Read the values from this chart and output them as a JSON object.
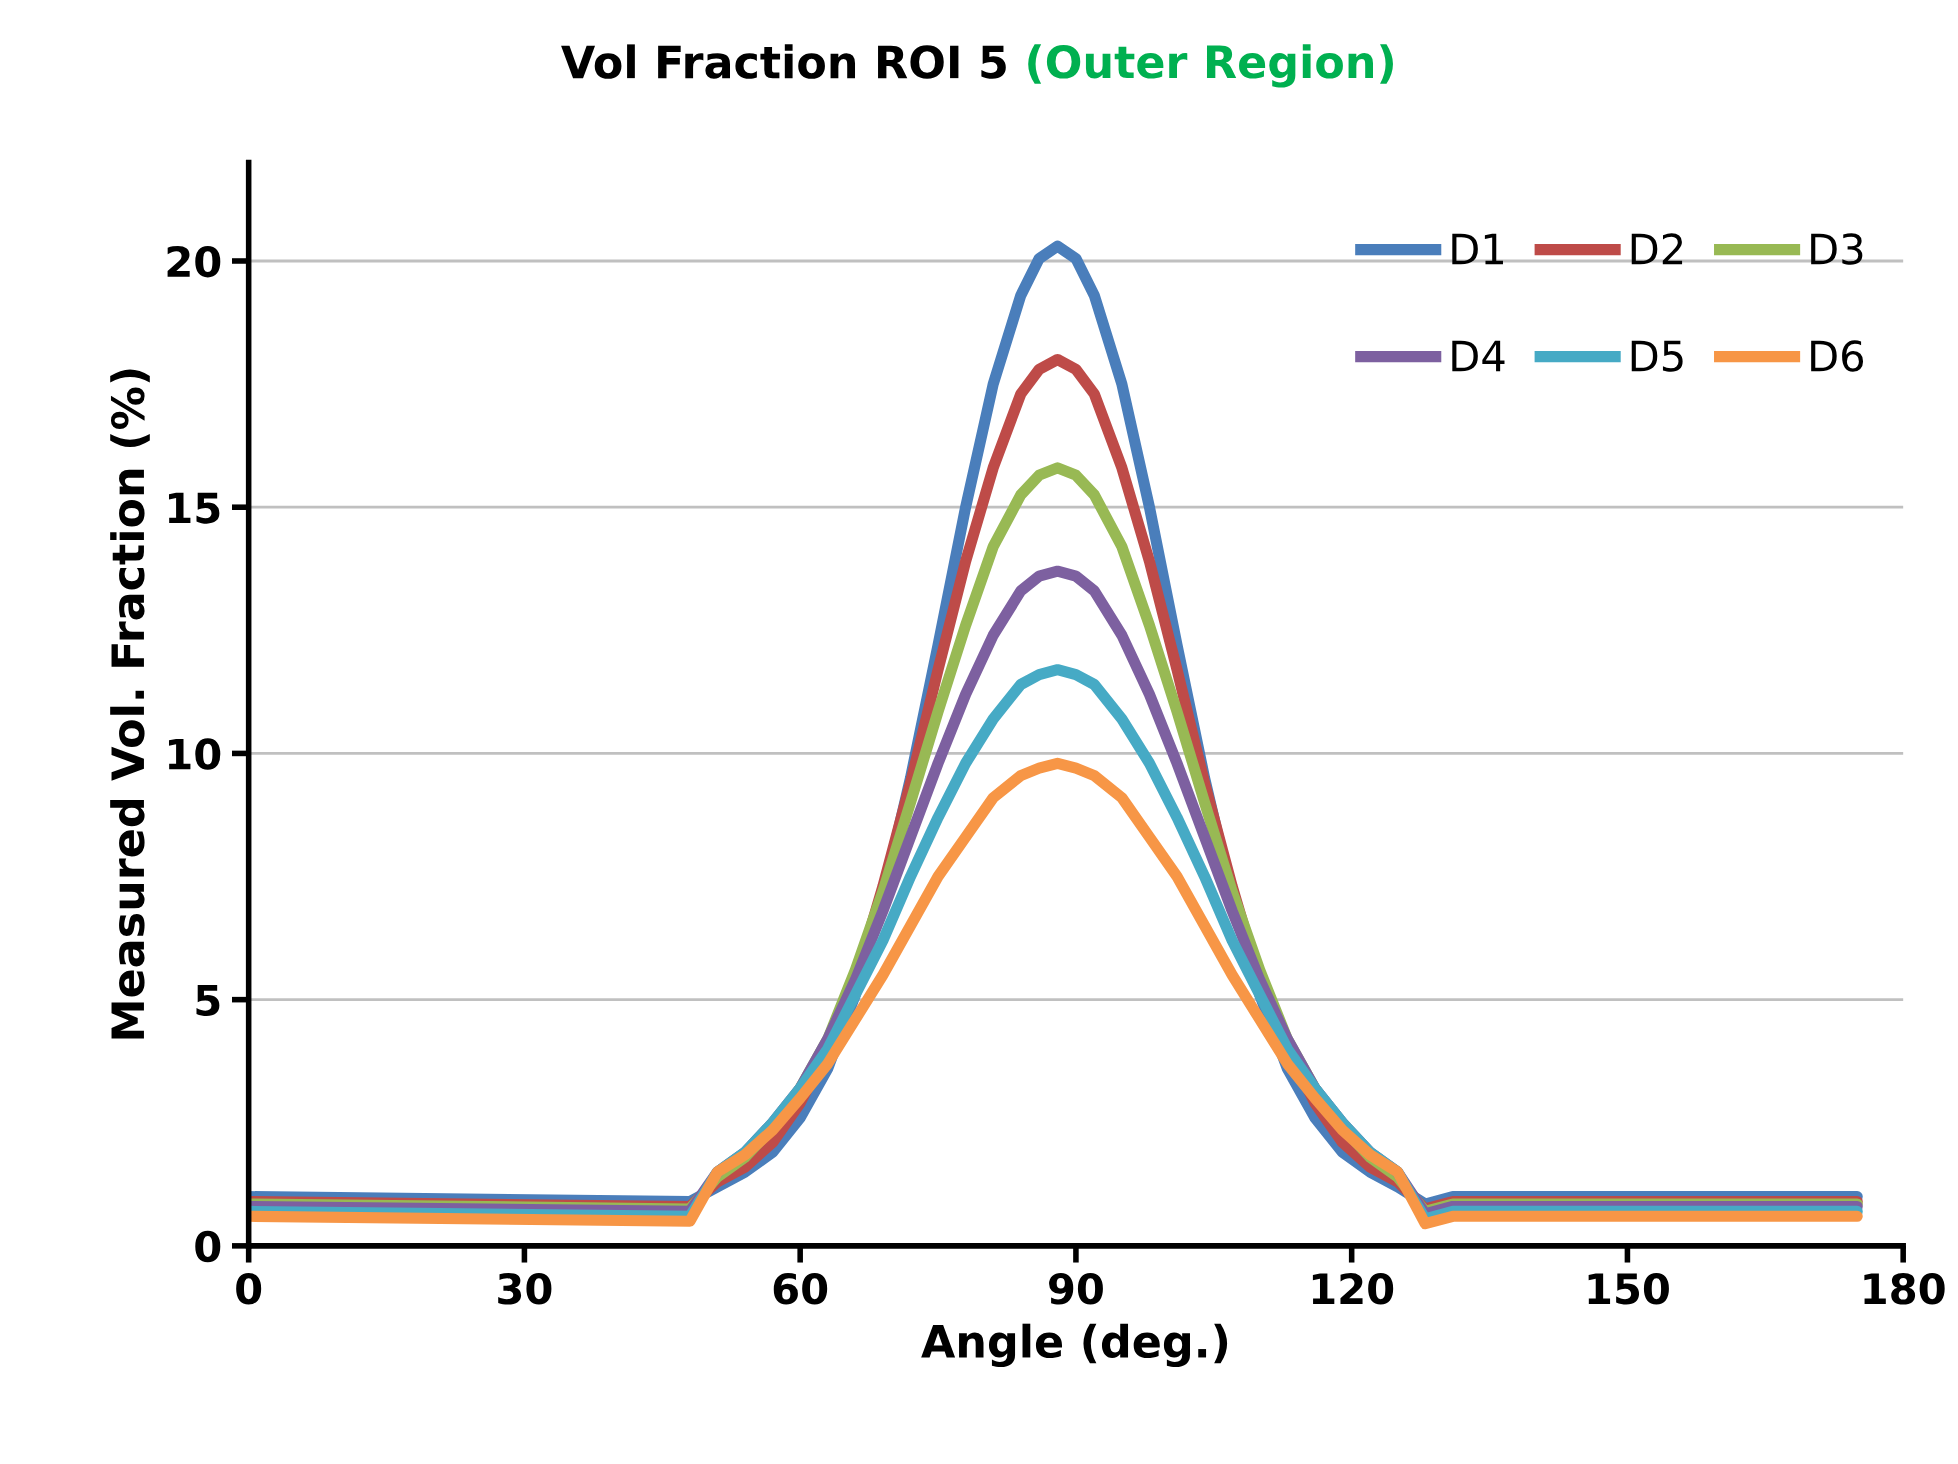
{
  "chart_data": {
    "type": "line",
    "title": "Vol Fraction ROI 5 (Outer Region)",
    "xlabel": "Angle (deg.)",
    "ylabel": "Measured Vol. Fraction (%)",
    "x": [
      0,
      48,
      51,
      54,
      57,
      60,
      63,
      66,
      69,
      72,
      75,
      78,
      81,
      84,
      86,
      88,
      90,
      92,
      95,
      98,
      101,
      104,
      107,
      110,
      113,
      116,
      119,
      122,
      125,
      128,
      131,
      175
    ],
    "series": [
      {
        "name": "D1",
        "color": "#4a7ebb",
        "values": [
          1.0,
          0.9,
          1.2,
          1.5,
          1.9,
          2.6,
          3.6,
          5.1,
          7.1,
          9.5,
          12.2,
          15.0,
          17.5,
          19.3,
          20.05,
          20.3,
          20.05,
          19.3,
          17.5,
          15.0,
          12.2,
          9.5,
          7.1,
          5.1,
          3.6,
          2.6,
          1.9,
          1.5,
          1.2,
          0.85,
          1.0,
          1.0
        ]
      },
      {
        "name": "D2",
        "color": "#be4b48",
        "values": [
          0.9,
          0.8,
          1.3,
          1.6,
          2.1,
          2.9,
          4.0,
          5.4,
          7.3,
          9.4,
          11.7,
          13.9,
          15.8,
          17.3,
          17.8,
          18.0,
          17.8,
          17.3,
          15.8,
          13.9,
          11.7,
          9.4,
          7.3,
          5.4,
          4.0,
          2.9,
          2.1,
          1.6,
          1.3,
          0.75,
          0.9,
          0.9
        ]
      },
      {
        "name": "D3",
        "color": "#98b954",
        "values": [
          0.85,
          0.75,
          1.4,
          1.8,
          2.4,
          3.2,
          4.2,
          5.6,
          7.2,
          9.0,
          10.85,
          12.6,
          14.2,
          15.25,
          15.65,
          15.8,
          15.65,
          15.25,
          14.2,
          12.6,
          10.85,
          9.0,
          7.2,
          5.6,
          4.2,
          3.2,
          2.4,
          1.8,
          1.4,
          0.7,
          0.85,
          0.85
        ]
      },
      {
        "name": "D4",
        "color": "#7d60a0",
        "values": [
          0.8,
          0.7,
          1.5,
          1.9,
          2.5,
          3.2,
          4.2,
          5.4,
          6.8,
          8.3,
          9.8,
          11.2,
          12.4,
          13.3,
          13.6,
          13.7,
          13.6,
          13.3,
          12.4,
          11.2,
          9.8,
          8.3,
          6.8,
          5.4,
          4.2,
          3.2,
          2.5,
          1.9,
          1.5,
          0.65,
          0.8,
          0.8
        ]
      },
      {
        "name": "D5",
        "color": "#46aac5",
        "values": [
          0.7,
          0.6,
          1.5,
          1.9,
          2.5,
          3.2,
          4.0,
          5.1,
          6.2,
          7.5,
          8.7,
          9.8,
          10.7,
          11.4,
          11.6,
          11.7,
          11.6,
          11.4,
          10.7,
          9.8,
          8.7,
          7.5,
          6.2,
          5.1,
          4.0,
          3.2,
          2.5,
          1.9,
          1.5,
          0.55,
          0.7,
          0.7
        ]
      },
      {
        "name": "D6",
        "color": "#f79646",
        "values": [
          0.6,
          0.5,
          1.5,
          1.85,
          2.35,
          3.0,
          3.7,
          4.6,
          5.5,
          6.5,
          7.5,
          8.3,
          9.1,
          9.55,
          9.7,
          9.8,
          9.7,
          9.55,
          9.1,
          8.3,
          7.5,
          6.5,
          5.5,
          4.6,
          3.7,
          3.0,
          2.35,
          1.85,
          1.5,
          0.45,
          0.6,
          0.6
        ]
      }
    ],
    "xlim": [
      0,
      180
    ],
    "xticks": [
      0,
      30,
      60,
      90,
      120,
      150,
      180
    ],
    "ylim": [
      0,
      22
    ],
    "yticks": [
      0,
      5,
      10,
      15,
      20
    ],
    "grid": "y",
    "legend": "top right",
    "marker": "none",
    "line_style": "solid"
  }
}
